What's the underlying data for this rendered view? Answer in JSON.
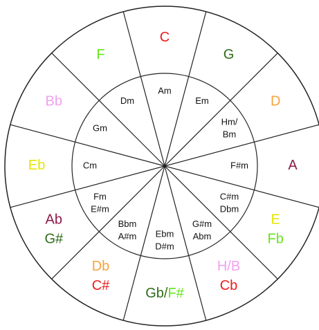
{
  "keys": [
    {
      "major": [
        [
          {
            "text": "C",
            "color": "#ee1c1c"
          }
        ]
      ],
      "minor": [
        "Am"
      ]
    },
    {
      "major": [
        [
          {
            "text": "G",
            "color": "#2f6b1a"
          }
        ]
      ],
      "minor": [
        "Em"
      ]
    },
    {
      "major": [
        [
          {
            "text": "D",
            "color": "#f5a33c"
          }
        ]
      ],
      "minor": [
        "Hm/",
        "Bm"
      ]
    },
    {
      "major": [
        [
          {
            "text": "A",
            "color": "#8b1a4b"
          }
        ]
      ],
      "minor": [
        "F#m"
      ]
    },
    {
      "major": [
        [
          {
            "text": "E",
            "color": "#e6e600"
          }
        ],
        [
          {
            "text": "Fb",
            "color": "#66e61a"
          }
        ]
      ],
      "minor": [
        "C#m",
        "Dbm"
      ]
    },
    {
      "major": [
        [
          {
            "text": "H/B",
            "color": "#f0a0f0"
          }
        ],
        [
          {
            "text": "Cb",
            "color": "#ee1c1c"
          }
        ]
      ],
      "minor": [
        "G#m",
        "Abm"
      ]
    },
    {
      "major": [
        [
          {
            "text": "Gb/",
            "color": "#2f6b1a"
          },
          {
            "text": "F#",
            "color": "#66e61a"
          }
        ]
      ],
      "minor": [
        "Ebm",
        "D#m"
      ]
    },
    {
      "major": [
        [
          {
            "text": "Db",
            "color": "#f5a33c"
          }
        ],
        [
          {
            "text": "C#",
            "color": "#ee1c1c"
          }
        ]
      ],
      "minor": [
        "Bbm",
        "A#m"
      ]
    },
    {
      "major": [
        [
          {
            "text": "Ab",
            "color": "#8b1a4b"
          }
        ],
        [
          {
            "text": "G#",
            "color": "#2f6b1a"
          }
        ]
      ],
      "minor": [
        "Fm",
        "E#m"
      ]
    },
    {
      "major": [
        [
          {
            "text": "Eb",
            "color": "#e6e600"
          }
        ]
      ],
      "minor": [
        "Cm"
      ]
    },
    {
      "major": [
        [
          {
            "text": "Bb",
            "color": "#f0a0f0"
          }
        ]
      ],
      "minor": [
        "Gm"
      ]
    },
    {
      "major": [
        [
          {
            "text": "F",
            "color": "#66e61a"
          }
        ]
      ],
      "minor": [
        "Dm"
      ]
    }
  ]
}
